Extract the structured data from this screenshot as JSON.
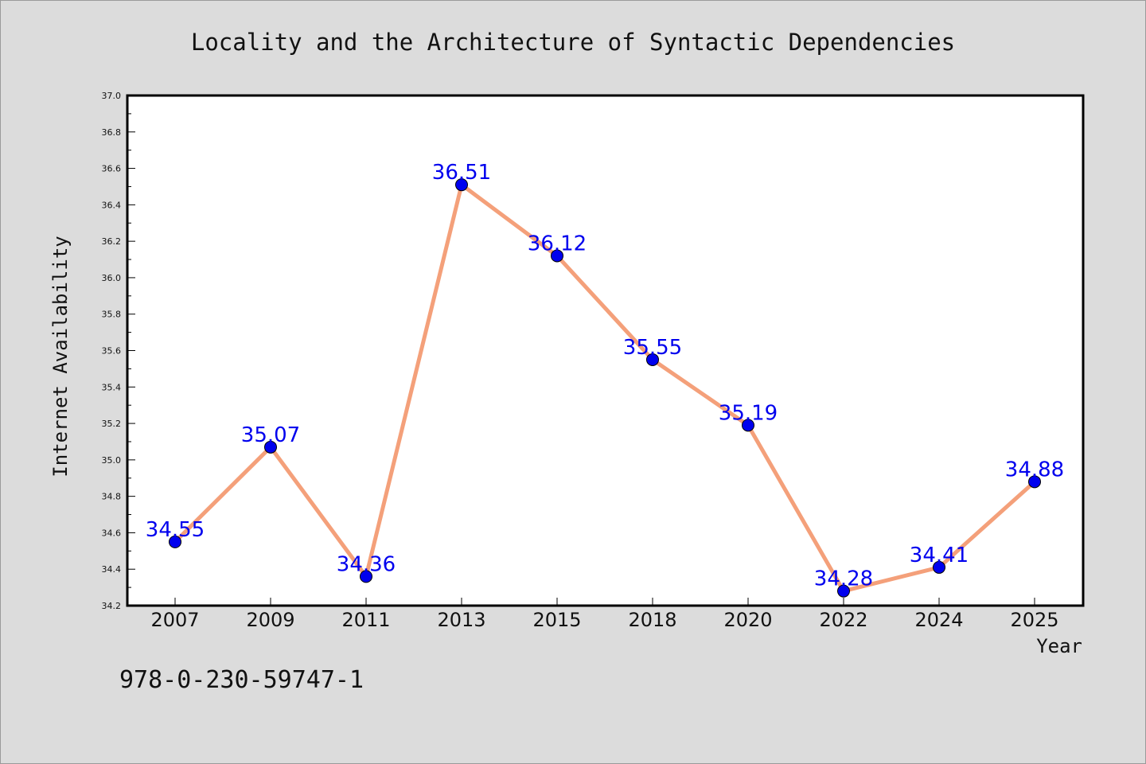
{
  "chart_data": {
    "type": "line",
    "title": "Locality and the Architecture of Syntactic Dependencies",
    "xlabel": "Year",
    "ylabel": "Internet Availability",
    "categories": [
      "2007",
      "2009",
      "2011",
      "2013",
      "2015",
      "2018",
      "2020",
      "2022",
      "2024",
      "2025"
    ],
    "values": [
      34.55,
      35.07,
      34.36,
      36.51,
      36.12,
      35.55,
      35.19,
      34.28,
      34.41,
      34.88
    ],
    "data_labels": [
      "34.55",
      "35.07",
      "34.36",
      "36.51",
      "36.12",
      "35.55",
      "35.19",
      "34.28",
      "34.41",
      "34.88"
    ],
    "ylim": [
      34.2,
      37.0
    ],
    "yticks": [
      "34.2",
      "34.4",
      "34.6",
      "34.8",
      "35.0",
      "35.2",
      "35.4",
      "35.6",
      "35.8",
      "36.0",
      "36.2",
      "36.4",
      "36.6",
      "36.8",
      "37.0"
    ],
    "grid": false,
    "legend": "none",
    "line_color": "#f4a07a",
    "marker_color": "#0000ee",
    "label_color": "#0000ee"
  },
  "footer": {
    "isbn": "978-0-230-59747-1"
  }
}
